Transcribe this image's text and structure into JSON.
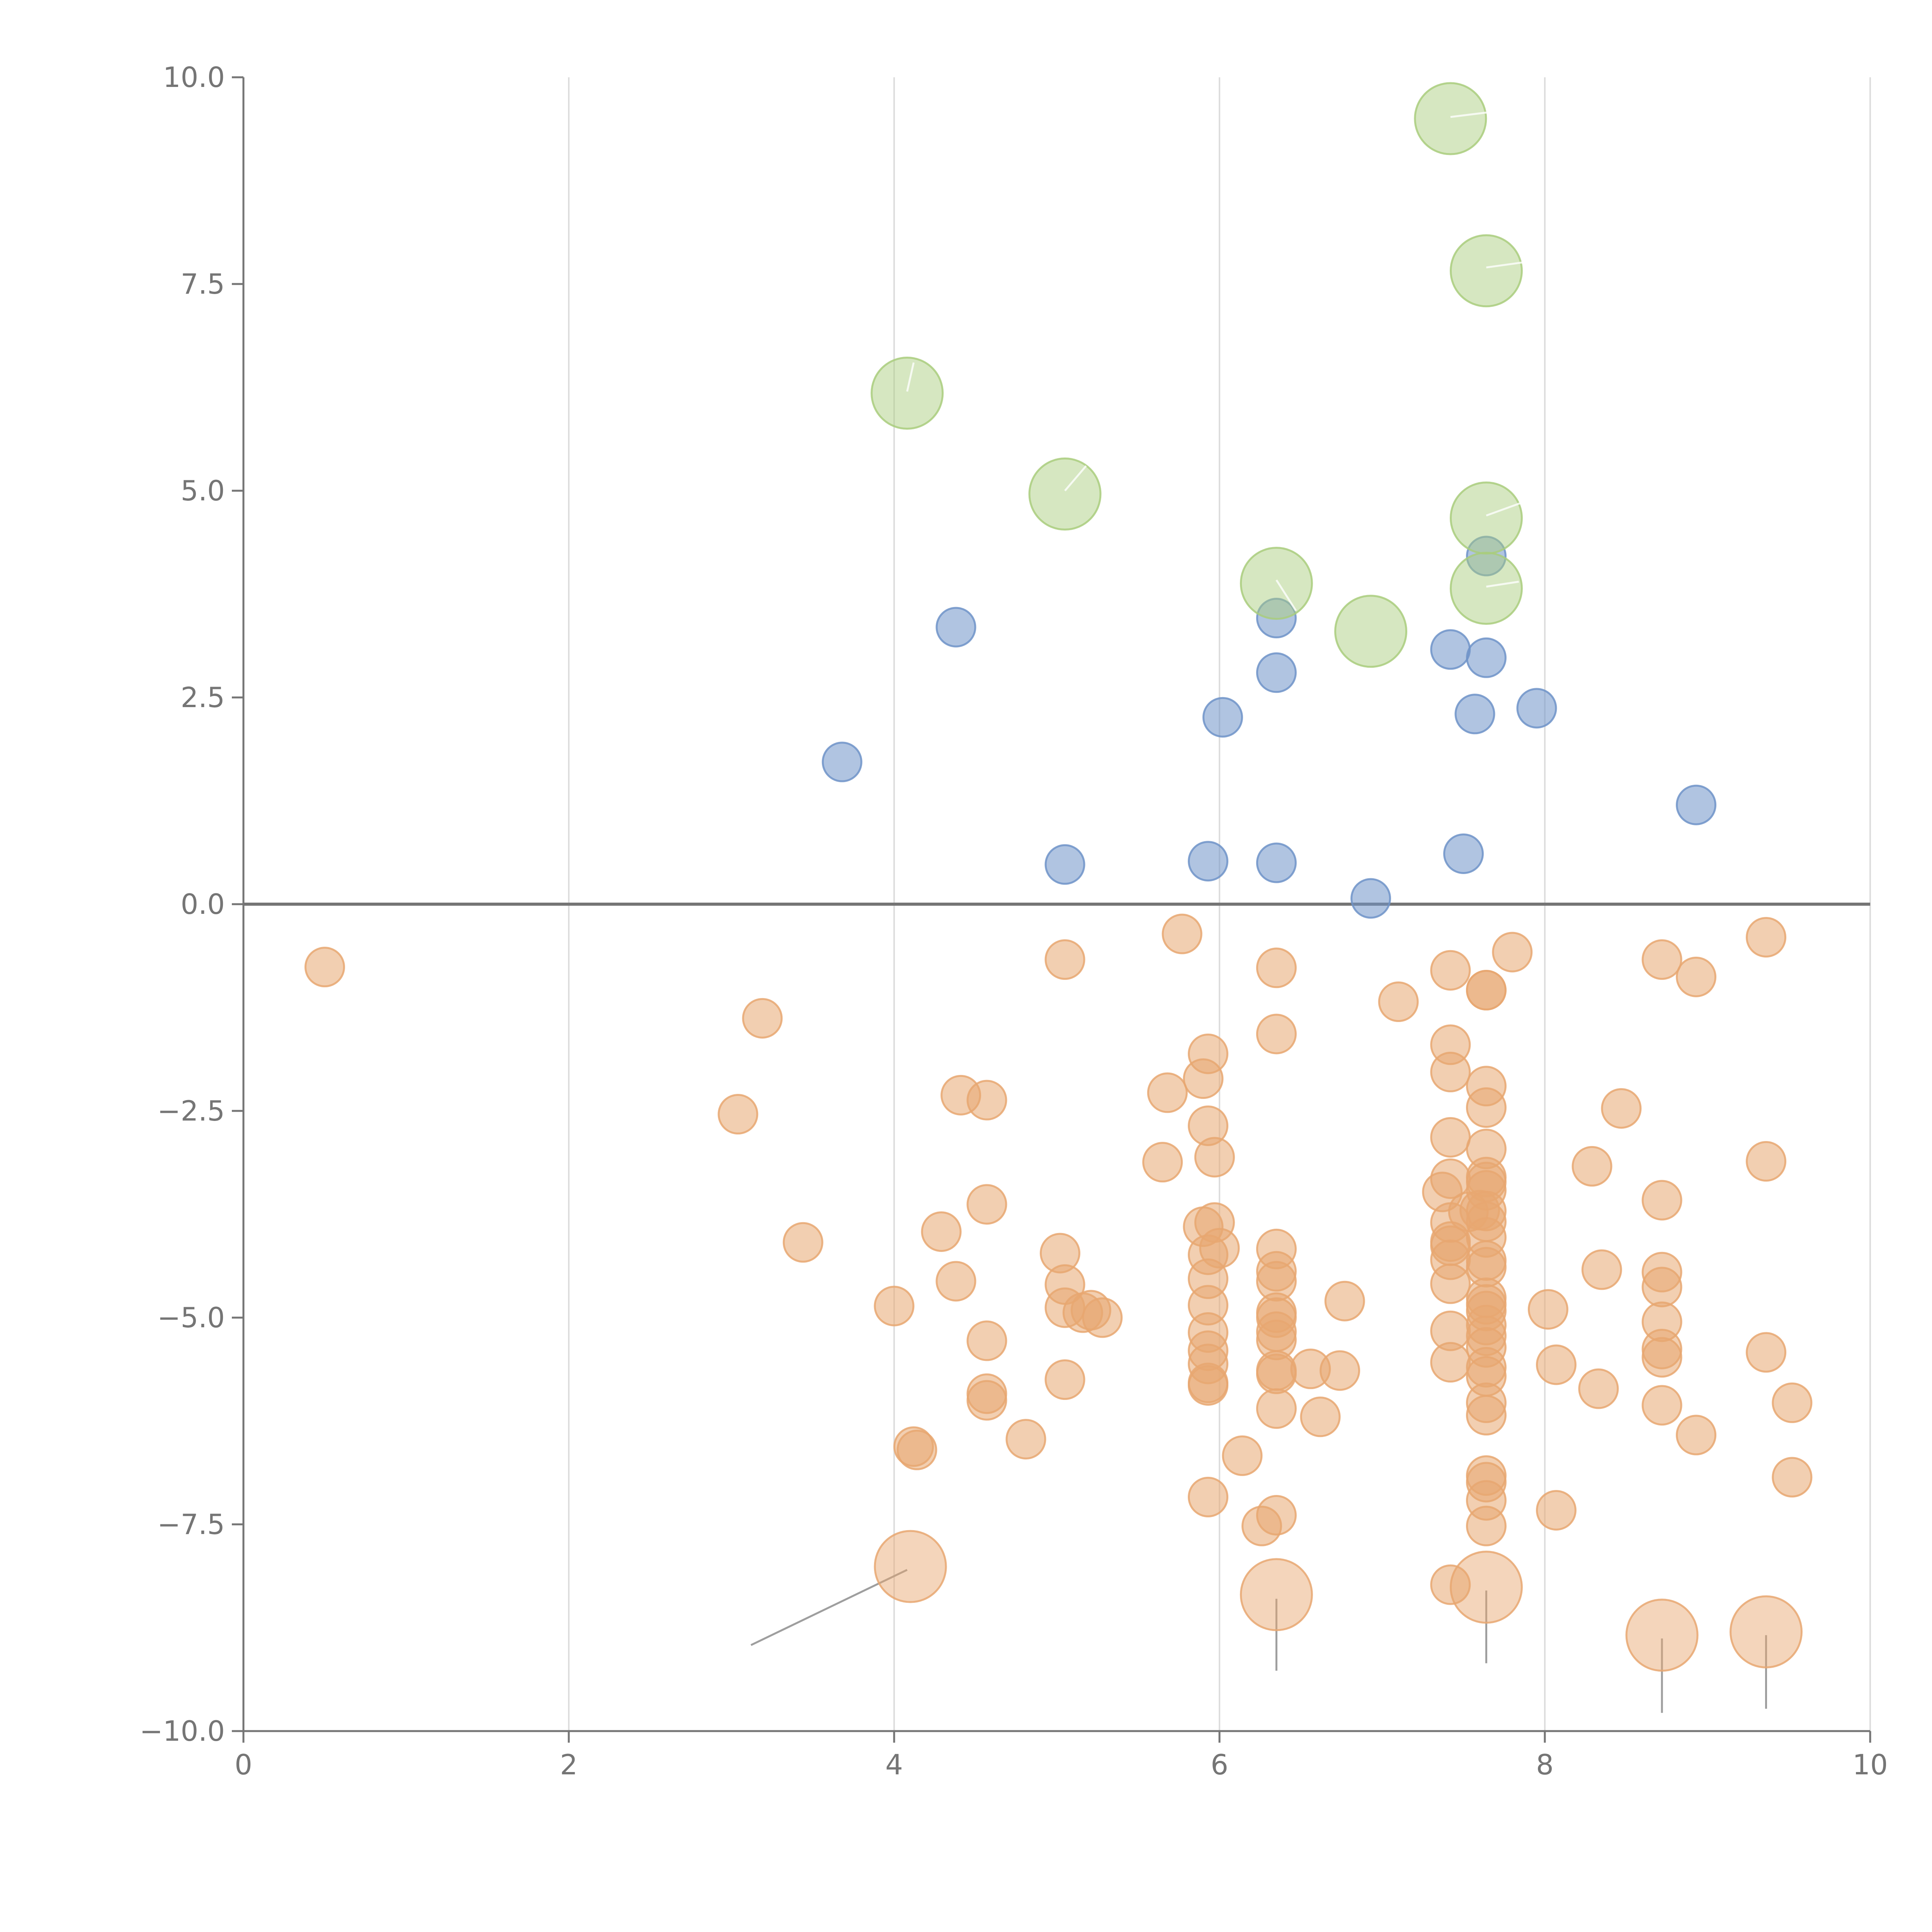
{
  "colors": {
    "pos_small": "#6f93c8",
    "pos_large": "#a9cc7d",
    "neg_small": "#e8a771",
    "neg_large": "#e8a771",
    "axis": "#757575",
    "grid": "#dddddd"
  },
  "chart_data": {
    "type": "scatter",
    "xlim": [
      0,
      10
    ],
    "ylim": [
      -10,
      10
    ],
    "xticks": [
      "0",
      "2",
      "4",
      "6",
      "8",
      "10"
    ],
    "yticks": [
      "10.0",
      "7.5",
      "5.0",
      "2.5",
      "0.0",
      "−2.5",
      "−5.0",
      "−7.5",
      "−10.0"
    ],
    "xtick_values": [
      0,
      2,
      4,
      6,
      8,
      10
    ],
    "ytick_values": [
      10,
      7.5,
      5,
      2.5,
      0,
      -2.5,
      -5,
      -7.5,
      -10
    ],
    "grid": "vertical",
    "series": [
      {
        "group": "positive-small",
        "marker": "small",
        "color": "#6f93c8",
        "points": [
          [
            4.38,
            3.35
          ],
          [
            3.68,
            1.72
          ],
          [
            5.05,
            0.48
          ],
          [
            5.93,
            0.52
          ],
          [
            6.02,
            2.26
          ],
          [
            6.35,
            3.46
          ],
          [
            6.35,
            2.8
          ],
          [
            6.35,
            0.5
          ],
          [
            6.93,
            0.07
          ],
          [
            7.42,
            3.08
          ],
          [
            7.64,
            2.98
          ],
          [
            7.57,
            2.3
          ],
          [
            7.95,
            2.37
          ],
          [
            7.5,
            0.61
          ],
          [
            8.93,
            1.2
          ],
          [
            7.64,
            4.21
          ]
        ]
      },
      {
        "group": "positive-large",
        "marker": "large",
        "color": "#a9cc7d",
        "points": [
          [
            7.42,
            9.5
          ],
          [
            7.64,
            7.66
          ],
          [
            4.08,
            6.18
          ],
          [
            5.05,
            4.96
          ],
          [
            7.64,
            4.67
          ],
          [
            6.35,
            3.88
          ],
          [
            7.64,
            3.82
          ],
          [
            6.93,
            3.3
          ]
        ]
      },
      {
        "group": "negative-small",
        "marker": "small",
        "color": "#e8a771",
        "points": [
          [
            0.5,
            -0.76
          ],
          [
            3.19,
            -1.38
          ],
          [
            3.04,
            -2.54
          ],
          [
            3.44,
            -4.09
          ],
          [
            4.0,
            -4.86
          ],
          [
            4.14,
            -6.6
          ],
          [
            4.12,
            -6.56
          ],
          [
            4.29,
            -3.96
          ],
          [
            4.38,
            -4.56
          ],
          [
            4.41,
            -2.31
          ],
          [
            4.57,
            -2.37
          ],
          [
            4.57,
            -3.63
          ],
          [
            4.57,
            -5.28
          ],
          [
            4.57,
            -5.92
          ],
          [
            4.57,
            -6.0
          ],
          [
            4.81,
            -6.47
          ],
          [
            5.05,
            -0.67
          ],
          [
            5.02,
            -4.22
          ],
          [
            5.05,
            -4.6
          ],
          [
            5.05,
            -4.88
          ],
          [
            5.05,
            -5.75
          ],
          [
            5.21,
            -4.91
          ],
          [
            5.16,
            -4.94
          ],
          [
            5.28,
            -5.0
          ],
          [
            5.65,
            -3.12
          ],
          [
            5.68,
            -2.28
          ],
          [
            5.77,
            -0.36
          ],
          [
            5.93,
            -1.81
          ],
          [
            5.9,
            -2.11
          ],
          [
            5.93,
            -2.68
          ],
          [
            5.97,
            -3.06
          ],
          [
            5.97,
            -3.85
          ],
          [
            5.9,
            -3.9
          ],
          [
            6.0,
            -4.16
          ],
          [
            5.93,
            -4.24
          ],
          [
            5.93,
            -4.53
          ],
          [
            5.93,
            -4.85
          ],
          [
            5.93,
            -5.18
          ],
          [
            5.93,
            -5.4
          ],
          [
            5.93,
            -5.56
          ],
          [
            5.93,
            -5.79
          ],
          [
            5.93,
            -5.82
          ],
          [
            5.93,
            -7.17
          ],
          [
            6.14,
            -6.67
          ],
          [
            6.26,
            -7.52
          ],
          [
            6.35,
            -0.77
          ],
          [
            6.35,
            -1.57
          ],
          [
            6.35,
            -4.17
          ],
          [
            6.35,
            -4.44
          ],
          [
            6.35,
            -4.56
          ],
          [
            6.35,
            -4.94
          ],
          [
            6.35,
            -5.0
          ],
          [
            6.35,
            -5.17
          ],
          [
            6.35,
            -5.27
          ],
          [
            6.35,
            -5.64
          ],
          [
            6.35,
            -5.68
          ],
          [
            6.35,
            -6.1
          ],
          [
            6.35,
            -7.39
          ],
          [
            6.56,
            -5.62
          ],
          [
            6.62,
            -6.2
          ],
          [
            6.74,
            -5.64
          ],
          [
            6.77,
            -4.8
          ],
          [
            7.1,
            -1.18
          ],
          [
            7.37,
            -3.48
          ],
          [
            7.42,
            -0.8
          ],
          [
            7.42,
            -1.7
          ],
          [
            7.42,
            -2.03
          ],
          [
            7.42,
            -2.82
          ],
          [
            7.42,
            -3.32
          ],
          [
            7.42,
            -3.85
          ],
          [
            7.42,
            -4.08
          ],
          [
            7.42,
            -4.13
          ],
          [
            7.42,
            -4.3
          ],
          [
            7.42,
            -4.59
          ],
          [
            7.42,
            -5.16
          ],
          [
            7.42,
            -5.54
          ],
          [
            7.42,
            -8.23
          ],
          [
            7.53,
            -3.72
          ],
          [
            7.6,
            -3.7
          ],
          [
            7.64,
            -1.04
          ],
          [
            7.64,
            -1.04
          ],
          [
            7.64,
            -2.2
          ],
          [
            7.64,
            -2.46
          ],
          [
            7.64,
            -2.96
          ],
          [
            7.64,
            -3.3
          ],
          [
            7.64,
            -3.36
          ],
          [
            7.64,
            -3.46
          ],
          [
            7.64,
            -3.71
          ],
          [
            7.64,
            -3.84
          ],
          [
            7.64,
            -4.03
          ],
          [
            7.64,
            -4.31
          ],
          [
            7.64,
            -4.39
          ],
          [
            7.64,
            -4.76
          ],
          [
            7.64,
            -4.84
          ],
          [
            7.64,
            -4.92
          ],
          [
            7.64,
            -5.09
          ],
          [
            7.64,
            -5.22
          ],
          [
            7.64,
            -5.36
          ],
          [
            7.64,
            -5.6
          ],
          [
            7.64,
            -5.71
          ],
          [
            7.64,
            -6.03
          ],
          [
            7.64,
            -6.18
          ],
          [
            7.64,
            -6.91
          ],
          [
            7.64,
            -6.99
          ],
          [
            7.64,
            -7.21
          ],
          [
            7.64,
            -7.52
          ],
          [
            7.8,
            -0.58
          ],
          [
            8.02,
            -4.9
          ],
          [
            8.07,
            -5.57
          ],
          [
            8.07,
            -7.33
          ],
          [
            8.29,
            -3.17
          ],
          [
            8.33,
            -5.86
          ],
          [
            8.35,
            -4.42
          ],
          [
            8.47,
            -2.47
          ],
          [
            8.72,
            -0.67
          ],
          [
            8.72,
            -3.58
          ],
          [
            8.72,
            -4.45
          ],
          [
            8.72,
            -4.63
          ],
          [
            8.72,
            -5.05
          ],
          [
            8.72,
            -5.38
          ],
          [
            8.72,
            -5.48
          ],
          [
            8.72,
            -6.06
          ],
          [
            8.93,
            -0.88
          ],
          [
            8.93,
            -6.42
          ],
          [
            9.36,
            -0.4
          ],
          [
            9.36,
            -3.11
          ],
          [
            9.36,
            -5.42
          ],
          [
            9.52,
            -6.03
          ],
          [
            9.52,
            -6.93
          ]
        ]
      },
      {
        "group": "negative-large",
        "marker": "large",
        "color": "#e8a771",
        "points": [
          [
            4.1,
            -8.01
          ],
          [
            6.35,
            -8.35
          ],
          [
            7.64,
            -8.26
          ],
          [
            8.72,
            -8.84
          ],
          [
            9.36,
            -8.8
          ]
        ]
      }
    ],
    "annotations": [
      {
        "style": "dark",
        "from": [
          4.08,
          -8.05
        ],
        "to": [
          3.12,
          -8.96
        ]
      },
      {
        "style": "dark",
        "from": [
          6.35,
          -8.4
        ],
        "to": [
          6.35,
          -9.27
        ]
      },
      {
        "style": "dark",
        "from": [
          7.64,
          -8.3
        ],
        "to": [
          7.64,
          -9.18
        ]
      },
      {
        "style": "dark",
        "from": [
          8.72,
          -8.88
        ],
        "to": [
          8.72,
          -9.78
        ]
      },
      {
        "style": "dark",
        "from": [
          9.36,
          -8.84
        ],
        "to": [
          9.36,
          -9.73
        ]
      },
      {
        "style": "light",
        "from": [
          7.42,
          9.52
        ],
        "to": [
          7.75,
          9.6
        ]
      },
      {
        "style": "light",
        "from": [
          7.64,
          7.7
        ],
        "to": [
          7.86,
          7.76
        ]
      },
      {
        "style": "light",
        "from": [
          4.08,
          6.2
        ],
        "to": [
          4.12,
          6.55
        ]
      },
      {
        "style": "light",
        "from": [
          5.05,
          5.0
        ],
        "to": [
          5.18,
          5.3
        ]
      },
      {
        "style": "light",
        "from": [
          7.64,
          4.7
        ],
        "to": [
          7.85,
          4.85
        ]
      },
      {
        "style": "light",
        "from": [
          6.35,
          3.92
        ],
        "to": [
          6.47,
          3.55
        ]
      },
      {
        "style": "light",
        "from": [
          7.64,
          3.84
        ],
        "to": [
          7.84,
          3.9
        ]
      }
    ]
  }
}
